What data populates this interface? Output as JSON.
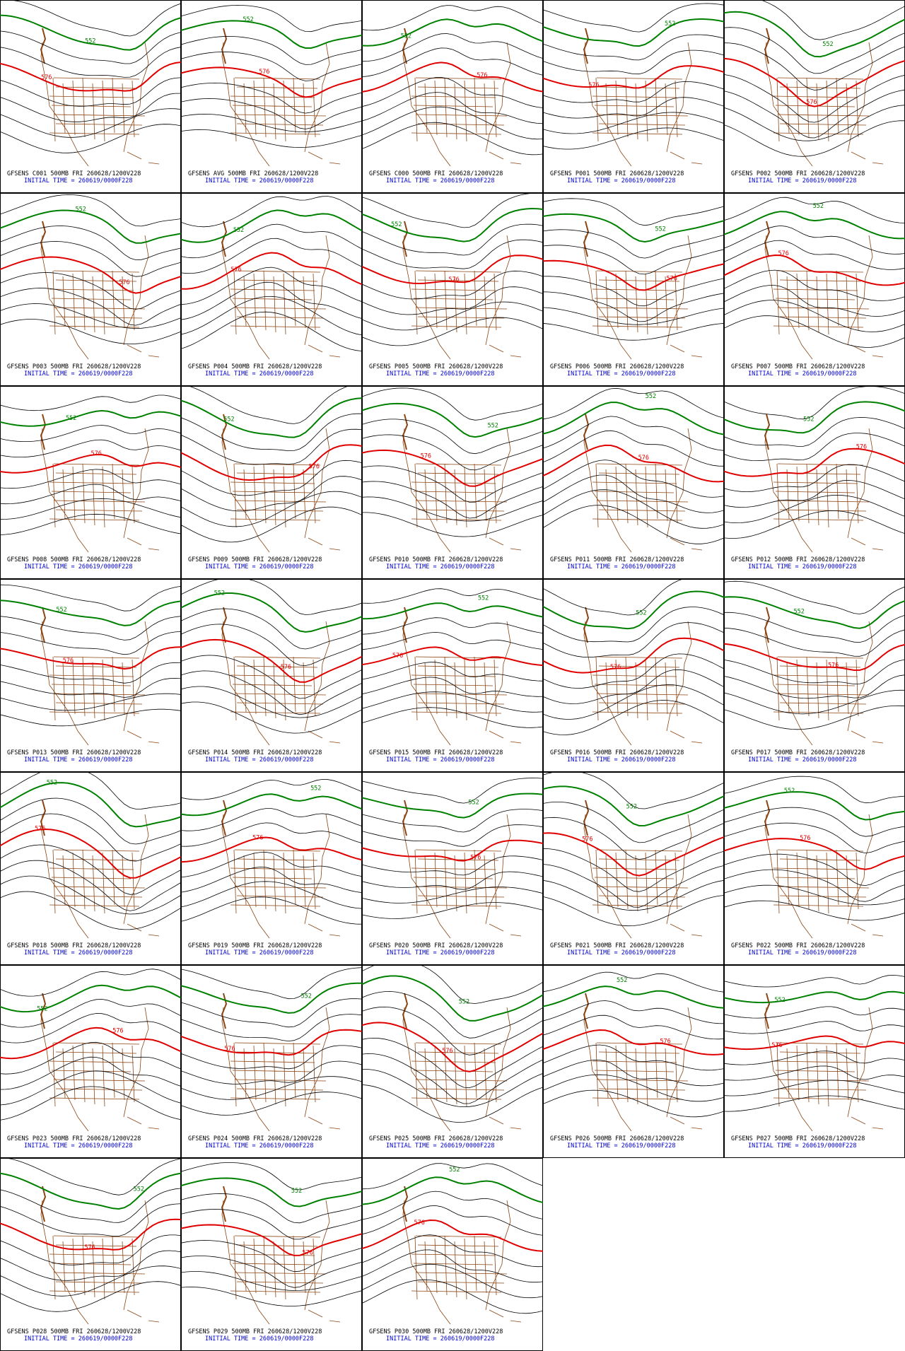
{
  "panels": [
    {
      "title": "GFSENS C001 500MB FRI 260628/1200V228",
      "initial_time": "INITIAL TIME = 260619/0000F228",
      "contour_labels": [
        "552",
        "576"
      ]
    },
    {
      "title": "GFSENS AVG 500MB FRI 260628/1200V228",
      "initial_time": "INITIAL TIME = 260619/0000F228",
      "contour_labels": [
        "552",
        "576"
      ]
    },
    {
      "title": "GFSENS C000 500MB FRI 260628/1200V228",
      "initial_time": "INITIAL TIME = 260619/0000F228",
      "contour_labels": [
        "552",
        "576"
      ]
    },
    {
      "title": "GFSENS P001 500MB FRI 260628/1200V228",
      "initial_time": "INITIAL TIME = 260619/0000F228",
      "contour_labels": [
        "552",
        "576"
      ]
    },
    {
      "title": "GFSENS P002 500MB FRI 260628/1200V228",
      "initial_time": "INITIAL TIME = 260619/0000F228",
      "contour_labels": [
        "552",
        "576"
      ]
    },
    {
      "title": "GFSENS P003 500MB FRI 260628/1200V228",
      "initial_time": "INITIAL TIME = 260619/0000F228",
      "contour_labels": [
        "552",
        "576"
      ]
    },
    {
      "title": "GFSENS P004 500MB FRI 260628/1200V228",
      "initial_time": "INITIAL TIME = 260619/0000F228",
      "contour_labels": [
        "552",
        "576"
      ]
    },
    {
      "title": "GFSENS P005 500MB FRI 260628/1200V228",
      "initial_time": "INITIAL TIME = 260619/0000F228",
      "contour_labels": [
        "552",
        "576"
      ]
    },
    {
      "title": "GFSENS P006 500MB FRI 260628/1200V228",
      "initial_time": "INITIAL TIME = 260619/0000F228",
      "contour_labels": [
        "552",
        "576"
      ]
    },
    {
      "title": "GFSENS P007 500MB FRI 260628/1200V228",
      "initial_time": "INITIAL TIME = 260619/0000F228",
      "contour_labels": [
        "552",
        "576"
      ]
    },
    {
      "title": "GFSENS P008 500MB FRI 260628/1200V228",
      "initial_time": "INITIAL TIME = 260619/0000F228",
      "contour_labels": [
        "552",
        "576"
      ]
    },
    {
      "title": "GFSENS P009 500MB FRI 260628/1200V228",
      "initial_time": "INITIAL TIME = 260619/0000F228",
      "contour_labels": [
        "552",
        "576"
      ]
    },
    {
      "title": "GFSENS P010 500MB FRI 260628/1200V228",
      "initial_time": "INITIAL TIME = 260619/0000F228",
      "contour_labels": [
        "552",
        "576"
      ]
    },
    {
      "title": "GFSENS P011 500MB FRI 260628/1200V228",
      "initial_time": "INITIAL TIME = 260619/0000F228",
      "contour_labels": [
        "552",
        "576"
      ]
    },
    {
      "title": "GFSENS P012 500MB FRI 260628/1200V228",
      "initial_time": "INITIAL TIME = 260619/0000F228",
      "contour_labels": [
        "552",
        "576"
      ]
    },
    {
      "title": "GFSENS P013 500MB FRI 260628/1200V228",
      "initial_time": "INITIAL TIME = 260619/0000F228",
      "contour_labels": [
        "552",
        "576"
      ]
    },
    {
      "title": "GFSENS P014 500MB FRI 260628/1200V228",
      "initial_time": "INITIAL TIME = 260619/0000F228",
      "contour_labels": [
        "552",
        "576"
      ]
    },
    {
      "title": "GFSENS P015 500MB FRI 260628/1200V228",
      "initial_time": "INITIAL TIME = 260619/0000F228",
      "contour_labels": [
        "552",
        "576"
      ]
    },
    {
      "title": "GFSENS P016 500MB FRI 260628/1200V228",
      "initial_time": "INITIAL TIME = 260619/0000F228",
      "contour_labels": [
        "552",
        "576"
      ]
    },
    {
      "title": "GFSENS P017 500MB FRI 260628/1200V228",
      "initial_time": "INITIAL TIME = 260619/0000F228",
      "contour_labels": [
        "552",
        "576"
      ]
    },
    {
      "title": "GFSENS P018 500MB FRI 260628/1200V228",
      "initial_time": "INITIAL TIME = 260619/0000F228",
      "contour_labels": [
        "552",
        "576"
      ]
    },
    {
      "title": "GFSENS P019 500MB FRI 260628/1200V228",
      "initial_time": "INITIAL TIME = 260619/0000F228",
      "contour_labels": [
        "552",
        "576"
      ]
    },
    {
      "title": "GFSENS P020 500MB FRI 260628/1200V228",
      "initial_time": "INITIAL TIME = 260619/0000F228",
      "contour_labels": [
        "552",
        "576"
      ]
    },
    {
      "title": "GFSENS P021 500MB FRI 260628/1200V228",
      "initial_time": "INITIAL TIME = 260619/0000F228",
      "contour_labels": [
        "552",
        "576"
      ]
    },
    {
      "title": "GFSENS P022 500MB FRI 260628/1200V228",
      "initial_time": "INITIAL TIME = 260619/0000F228",
      "contour_labels": [
        "552",
        "576"
      ]
    },
    {
      "title": "GFSENS P023 500MB FRI 260628/1200V228",
      "initial_time": "INITIAL TIME = 260619/0000F228",
      "contour_labels": [
        "552",
        "576"
      ]
    },
    {
      "title": "GFSENS P024 500MB FRI 260628/1200V228",
      "initial_time": "INITIAL TIME = 260619/0000F228",
      "contour_labels": [
        "552",
        "576"
      ]
    },
    {
      "title": "GFSENS P025 500MB FRI 260628/1200V228",
      "initial_time": "INITIAL TIME = 260619/0000F228",
      "contour_labels": [
        "552",
        "576"
      ]
    },
    {
      "title": "GFSENS P026 500MB FRI 260628/1200V228",
      "initial_time": "INITIAL TIME = 260619/0000F228",
      "contour_labels": [
        "552",
        "576"
      ]
    },
    {
      "title": "GFSENS P027 500MB FRI 260628/1200V228",
      "initial_time": "INITIAL TIME = 260619/0000F228",
      "contour_labels": [
        "552",
        "576"
      ]
    },
    {
      "title": "GFSENS P028 500MB FRI 260628/1200V228",
      "initial_time": "INITIAL TIME = 260619/0000F228",
      "contour_labels": [
        "552",
        "576"
      ]
    },
    {
      "title": "GFSENS P029 500MB FRI 260628/1200V228",
      "initial_time": "INITIAL TIME = 260619/0000F228",
      "contour_labels": [
        "552",
        "576"
      ]
    },
    {
      "title": "GFSENS P030 500MB FRI 260628/1200V228",
      "initial_time": "INITIAL TIME = 260619/0000F228",
      "contour_labels": [
        "552",
        "576"
      ]
    }
  ]
}
